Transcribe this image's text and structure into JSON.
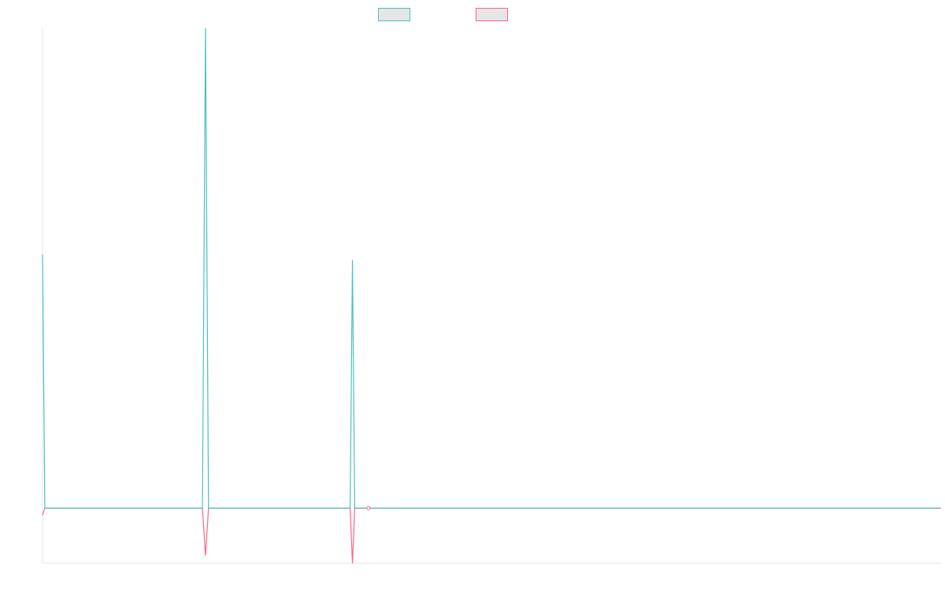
{
  "chart_data": {
    "type": "line",
    "title": "",
    "xlabel": "",
    "ylabel": "",
    "grid": false,
    "legend": "top-center",
    "colors": {
      "series_a": "#4bc0c0",
      "series_b": "#ff6384",
      "axis": "#e5e5e5",
      "legend_fill": "#e6e6e6"
    },
    "xlim": [
      0,
      118
    ],
    "ylim": [
      -10,
      87
    ],
    "series": [
      {
        "name": "",
        "color": "#4bc0c0",
        "points": [
          [
            0,
            46
          ],
          [
            0.3,
            0
          ],
          [
            21,
            0
          ],
          [
            21.4,
            87
          ],
          [
            21.8,
            0
          ],
          [
            40.4,
            0
          ],
          [
            40.7,
            45
          ],
          [
            41,
            0
          ],
          [
            118,
            0
          ]
        ]
      },
      {
        "name": "",
        "color": "#ff6384",
        "points": [
          [
            0,
            -1.3
          ],
          [
            0.3,
            0
          ],
          [
            21,
            0
          ],
          [
            21.4,
            -8.6
          ],
          [
            21.8,
            0
          ],
          [
            40.4,
            0
          ],
          [
            40.7,
            -10
          ],
          [
            41,
            0
          ],
          [
            118,
            0
          ]
        ]
      }
    ],
    "markers": [
      {
        "x": 42.8,
        "y": 0,
        "color": "#ff6384"
      }
    ]
  }
}
